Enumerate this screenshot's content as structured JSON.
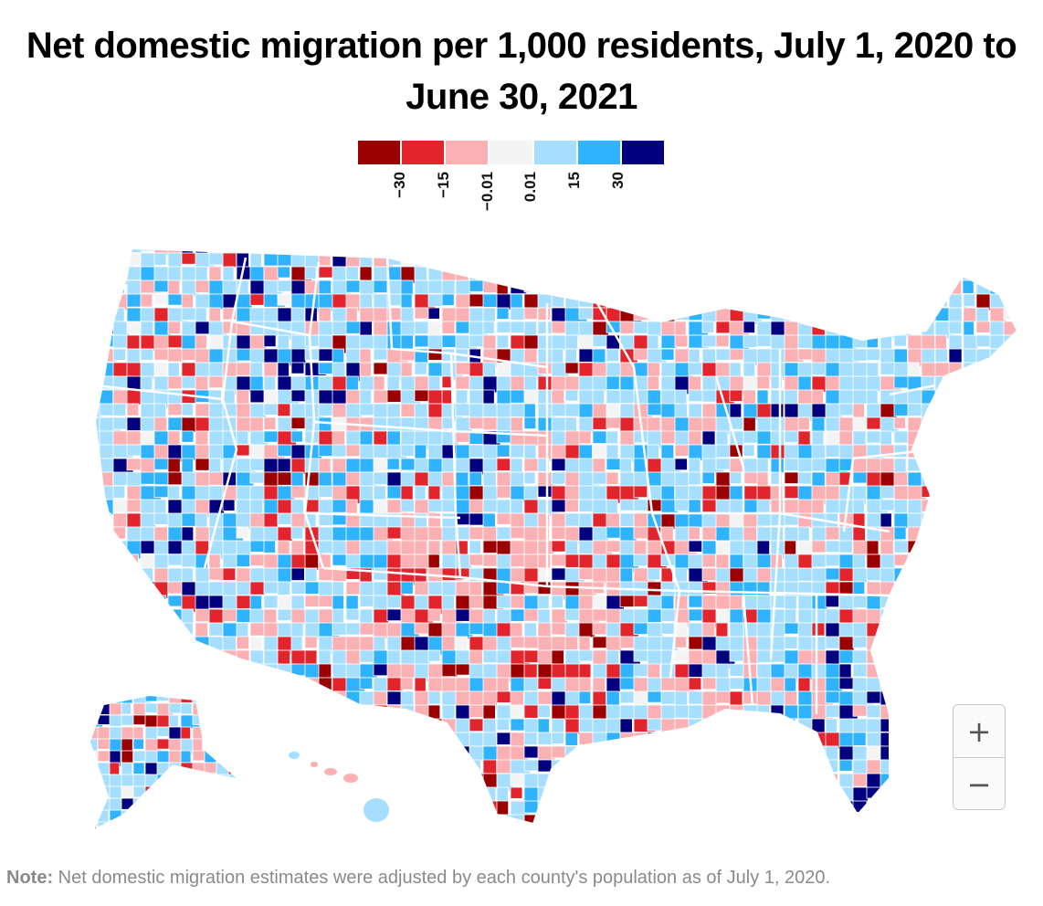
{
  "title": "Net domestic migration per 1,000 residents, July 1, 2020 to June 30, 2021",
  "legend": {
    "colors": [
      "#9b0000",
      "#e2252c",
      "#fbb0b3",
      "#f4f4f4",
      "#a6deff",
      "#2fb3ff",
      "#02007f"
    ],
    "ticks": [
      "−30",
      "−15",
      "−0.01",
      "0.01",
      "15",
      "30"
    ]
  },
  "map": {
    "region": "United States counties",
    "insets": [
      "Alaska",
      "Hawaii"
    ]
  },
  "zoom": {
    "in_label": "+",
    "out_label": "−"
  },
  "note": {
    "label": "Note:",
    "text": " Net domestic migration estimates were adjusted by each county's population as of July 1, 2020."
  }
}
